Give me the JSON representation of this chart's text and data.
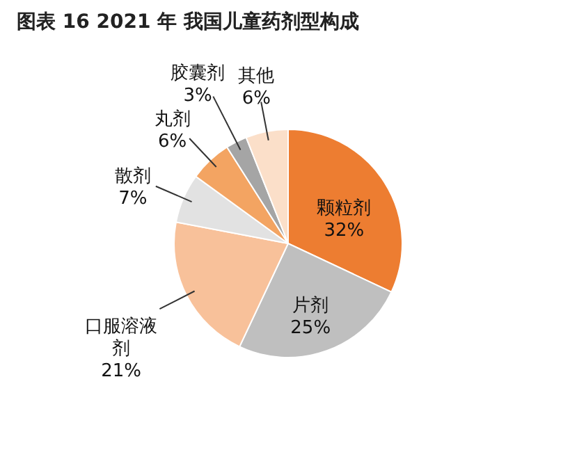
{
  "chart_data": {
    "type": "pie",
    "title": "图表 16 2021 年 我国儿童药剂型构成",
    "categories": [
      "颗粒剂",
      "片剂",
      "口服溶液剂",
      "散剂",
      "丸剂",
      "胶囊剂",
      "其他"
    ],
    "values": [
      32,
      25,
      21,
      7,
      6,
      3,
      6
    ],
    "colors": [
      "#ed7d31",
      "#bfbfbf",
      "#f8c19a",
      "#e2e2e2",
      "#f3a462",
      "#a5a5a5",
      "#fbdfc9"
    ],
    "value_labels": [
      "32%",
      "25%",
      "21%",
      "7%",
      "6%",
      "3%",
      "6%"
    ]
  }
}
